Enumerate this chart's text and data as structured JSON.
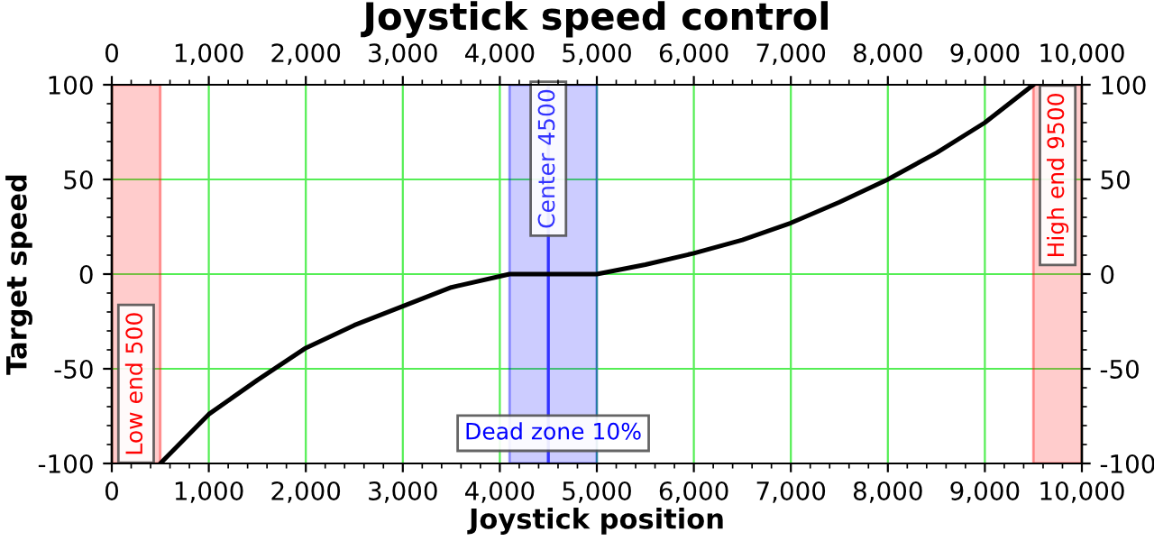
{
  "chart_data": {
    "type": "line",
    "title": "Joystick speed control",
    "xlabel": "Joystick position",
    "ylabel": "Target speed",
    "x": [
      500,
      1000,
      1500,
      2000,
      2500,
      3000,
      3500,
      4100,
      5000,
      5500,
      6000,
      6500,
      7000,
      7500,
      8000,
      8500,
      9000,
      9500
    ],
    "series": [
      {
        "color": "#000000",
        "values": [
          -100,
          -74,
          -56,
          -39,
          -27,
          -17,
          -7,
          0,
          0,
          5,
          11,
          18,
          27,
          38,
          50,
          64,
          80,
          100
        ]
      }
    ],
    "xlim": [
      0,
      10000
    ],
    "ylim": [
      -100,
      100
    ],
    "y2lim": [
      -100,
      100
    ],
    "x2lim": [
      0,
      10000
    ],
    "xticks": [
      0,
      {
        "value": 1000,
        "label": "1,000"
      },
      {
        "value": 2000,
        "label": "2,000"
      },
      {
        "value": 3000,
        "label": "3,000"
      },
      {
        "value": 4000,
        "label": "4,000"
      },
      {
        "value": 5000,
        "label": "5,000"
      },
      {
        "value": 6000,
        "label": "6,000"
      },
      {
        "value": 7000,
        "label": "7,000"
      },
      {
        "value": 8000,
        "label": "8,000"
      },
      {
        "value": 9000,
        "label": "9,000"
      },
      {
        "value": 10000,
        "label": "10,000"
      }
    ],
    "x2ticks": [
      0,
      {
        "value": 1000,
        "label": "1,000"
      },
      {
        "value": 2000,
        "label": "2,000"
      },
      {
        "value": 3000,
        "label": "3,000"
      },
      {
        "value": 4000,
        "label": "4,000"
      },
      {
        "value": 5000,
        "label": "5,000"
      },
      {
        "value": 6000,
        "label": "6,000"
      },
      {
        "value": 7000,
        "label": "7,000"
      },
      {
        "value": 8000,
        "label": "8,000"
      },
      {
        "value": 9000,
        "label": "9,000"
      },
      {
        "value": 10000,
        "label": "10,000"
      }
    ],
    "yticks": [
      -100,
      -50,
      0,
      50,
      100
    ],
    "y2ticks": [
      -100,
      -50,
      0,
      50,
      100
    ],
    "grid": true,
    "marker": "none",
    "line_style": "solid",
    "bands": [
      {
        "axis": "x",
        "from": 0,
        "to": 500,
        "label": "Low end 500",
        "color": "#ff0000"
      },
      {
        "axis": "x",
        "from": 4100,
        "to": 5000,
        "label": "Dead zone 10%",
        "color": "#0000ff"
      },
      {
        "axis": "x",
        "from": 9500,
        "to": 10000,
        "label": "High end 9500",
        "color": "#ff0000"
      }
    ],
    "ref_lines": [
      {
        "axis": "x",
        "value": 4500,
        "label": "Center 4500",
        "color": "#3333ff",
        "line_style": "solid"
      }
    ]
  }
}
